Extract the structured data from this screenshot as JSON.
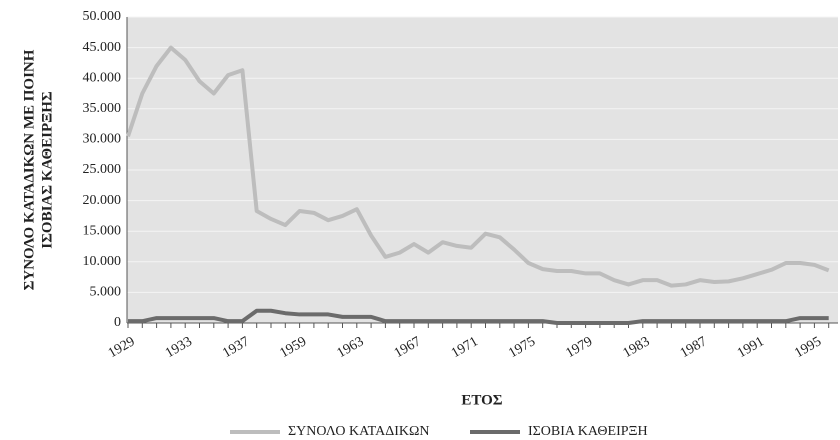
{
  "chart_data": {
    "type": "line",
    "y_label": [
      "ΣΥΝΟΛΟ ΚΑΤΑΔΙΚΩΝ ΜΕ ΠΟΙΝΗ",
      "ΙΣΟΒΙΑΣ ΚΑΘΕΙΡΞΗΣ"
    ],
    "x_label": "ΕΤΟΣ",
    "categories": [
      "1929",
      null,
      null,
      null,
      "1933",
      null,
      null,
      null,
      "1937",
      null,
      null,
      null,
      "1959",
      null,
      null,
      null,
      "1963",
      null,
      null,
      null,
      "1967",
      null,
      null,
      null,
      "1971",
      null,
      null,
      null,
      "1975",
      null,
      null,
      null,
      "1979",
      null,
      null,
      null,
      "1983",
      null,
      null,
      null,
      "1987",
      null,
      null,
      null,
      "1991",
      null,
      null,
      null,
      "1995",
      null
    ],
    "series": [
      {
        "name": "ΣΥΝΟΛΟ ΚΑΤΑΔΙΚΩΝ",
        "color": "#bdbdbd",
        "values": [
          30500,
          37500,
          42000,
          45000,
          43000,
          39500,
          37500,
          40500,
          41300,
          18300,
          17000,
          16000,
          18300,
          18000,
          16800,
          17500,
          18600,
          14300,
          10800,
          11500,
          12900,
          11500,
          13200,
          12600,
          12300,
          14600,
          14000,
          12000,
          9800,
          8800,
          8500,
          8500,
          8100,
          8100,
          7000,
          6300,
          7000,
          7000,
          6100,
          6300,
          7000,
          6700,
          6800,
          7300,
          8000,
          8700,
          9800,
          9800,
          9500,
          8600
        ]
      },
      {
        "name": "ΙΣΟΒΙΑ ΚΑΘΕΙΡΞΗ",
        "color": "#6b6b6b",
        "values": [
          300,
          300,
          800,
          800,
          800,
          800,
          800,
          300,
          300,
          2000,
          2000,
          1600,
          1400,
          1400,
          1400,
          1000,
          1000,
          1000,
          300,
          300,
          300,
          300,
          300,
          300,
          300,
          300,
          300,
          300,
          300,
          300,
          0,
          0,
          0,
          0,
          0,
          0,
          300,
          300,
          300,
          300,
          300,
          300,
          300,
          300,
          300,
          300,
          300,
          800,
          800,
          800
        ]
      }
    ],
    "ylim": [
      0,
      50000
    ],
    "yticks": [
      0,
      {
        "value": 5000,
        "label": "5.000"
      },
      {
        "value": 10000,
        "label": "10.000"
      },
      {
        "value": 15000,
        "label": "15.000"
      },
      {
        "value": 20000,
        "label": "20.000"
      },
      {
        "value": 25000,
        "label": "25.000"
      },
      {
        "value": 30000,
        "label": "30.000"
      },
      {
        "value": 35000,
        "label": "35.000"
      },
      {
        "value": 40000,
        "label": "40.000"
      },
      {
        "value": 45000,
        "label": "45.000"
      },
      {
        "value": 50000,
        "label": "50.000"
      }
    ],
    "grid": true
  }
}
